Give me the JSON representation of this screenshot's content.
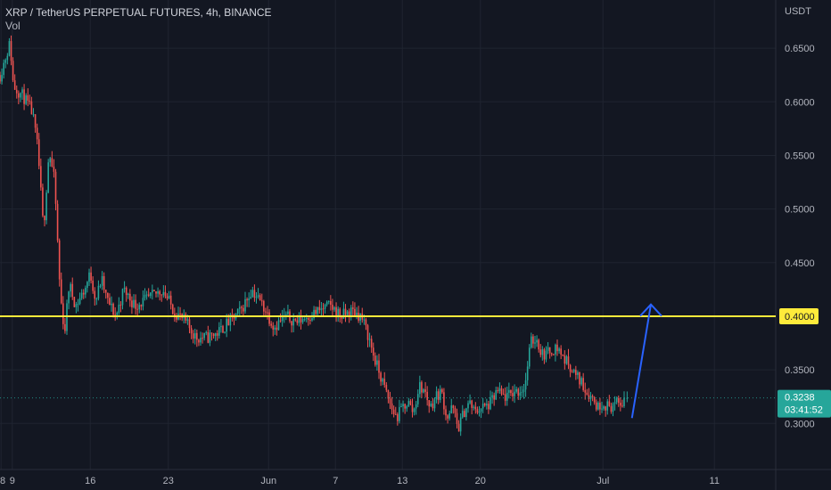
{
  "header": {
    "symbol_line": "XRP / TetherUS PERPETUAL FUTURES, 4h, BINANCE",
    "indicator": "Vol"
  },
  "axis": {
    "currency": "USDT"
  },
  "price_tag": {
    "price": "0.3238",
    "countdown": "03:41:52"
  },
  "level_tag": {
    "value": "0.4000"
  },
  "colors": {
    "background": "#131722",
    "grid": "#1f2430",
    "up_candle": "#26a69a",
    "down_candle": "#ef5350",
    "level_line": "#ffeb3b",
    "arrow": "#2962ff",
    "price_tag": "#26a69a",
    "axis_text": "#b2b5be"
  },
  "chart_data": {
    "type": "candlestick",
    "title": "XRP / TetherUS PERPETUAL FUTURES, 4h, BINANCE",
    "ylabel": "USDT",
    "ylim": [
      0.257,
      0.695
    ],
    "x_tick_labels": [
      "8",
      "9",
      "16",
      "23",
      "Jun",
      "7",
      "13",
      "20",
      "Jul",
      "11"
    ],
    "x_tick_days": [
      8,
      9,
      16,
      23,
      32,
      38,
      44,
      51,
      62,
      72
    ],
    "xlim_days": [
      7.9,
      77.5
    ],
    "y_ticks": [
      0.65,
      0.6,
      0.55,
      0.5,
      0.45,
      0.35,
      0.3
    ],
    "y_tick_labels": [
      "0.6500",
      "0.6000",
      "0.5500",
      "0.5000",
      "0.4500",
      "0.3500",
      "0.3000"
    ],
    "grid": true,
    "horizontal_level": 0.4,
    "last_price": 0.3238,
    "path_points": [
      [
        7.9,
        0.625
      ],
      [
        8.8,
        0.655
      ],
      [
        9.1,
        0.615
      ],
      [
        10.0,
        0.605
      ],
      [
        10.8,
        0.59
      ],
      [
        11.3,
        0.555
      ],
      [
        11.8,
        0.48
      ],
      [
        12.3,
        0.555
      ],
      [
        12.8,
        0.525
      ],
      [
        13.3,
        0.42
      ],
      [
        13.7,
        0.385
      ],
      [
        14.1,
        0.43
      ],
      [
        14.7,
        0.41
      ],
      [
        15.5,
        0.425
      ],
      [
        16.0,
        0.44
      ],
      [
        16.5,
        0.415
      ],
      [
        17.0,
        0.435
      ],
      [
        17.5,
        0.415
      ],
      [
        18.3,
        0.4
      ],
      [
        19.0,
        0.425
      ],
      [
        20.0,
        0.41
      ],
      [
        21.0,
        0.415
      ],
      [
        22.5,
        0.425
      ],
      [
        23.5,
        0.405
      ],
      [
        24.5,
        0.395
      ],
      [
        25.5,
        0.38
      ],
      [
        26.5,
        0.38
      ],
      [
        27.5,
        0.385
      ],
      [
        28.5,
        0.395
      ],
      [
        29.5,
        0.405
      ],
      [
        30.5,
        0.425
      ],
      [
        31.5,
        0.41
      ],
      [
        32.5,
        0.39
      ],
      [
        33.5,
        0.4
      ],
      [
        34.5,
        0.395
      ],
      [
        35.5,
        0.4
      ],
      [
        36.5,
        0.405
      ],
      [
        37.5,
        0.41
      ],
      [
        38.5,
        0.4
      ],
      [
        39.5,
        0.405
      ],
      [
        40.3,
        0.4
      ],
      [
        41.0,
        0.38
      ],
      [
        41.5,
        0.36
      ],
      [
        42.0,
        0.345
      ],
      [
        42.5,
        0.33
      ],
      [
        43.0,
        0.315
      ],
      [
        43.5,
        0.305
      ],
      [
        44.0,
        0.315
      ],
      [
        44.5,
        0.32
      ],
      [
        45.0,
        0.31
      ],
      [
        45.5,
        0.335
      ],
      [
        46.0,
        0.33
      ],
      [
        46.5,
        0.315
      ],
      [
        47.0,
        0.325
      ],
      [
        47.5,
        0.33
      ],
      [
        48.0,
        0.305
      ],
      [
        48.5,
        0.315
      ],
      [
        49.0,
        0.295
      ],
      [
        49.5,
        0.31
      ],
      [
        50.0,
        0.32
      ],
      [
        50.5,
        0.31
      ],
      [
        51.0,
        0.315
      ],
      [
        51.5,
        0.315
      ],
      [
        52.0,
        0.32
      ],
      [
        52.5,
        0.33
      ],
      [
        53.0,
        0.325
      ],
      [
        53.5,
        0.325
      ],
      [
        54.0,
        0.33
      ],
      [
        54.5,
        0.33
      ],
      [
        55.0,
        0.335
      ],
      [
        55.5,
        0.375
      ],
      [
        56.0,
        0.38
      ],
      [
        56.5,
        0.365
      ],
      [
        57.0,
        0.365
      ],
      [
        57.5,
        0.37
      ],
      [
        58.0,
        0.37
      ],
      [
        58.5,
        0.36
      ],
      [
        59.0,
        0.355
      ],
      [
        59.5,
        0.345
      ],
      [
        60.0,
        0.34
      ],
      [
        60.5,
        0.33
      ],
      [
        61.0,
        0.325
      ],
      [
        61.5,
        0.315
      ],
      [
        62.0,
        0.32
      ],
      [
        62.5,
        0.315
      ],
      [
        63.0,
        0.318
      ],
      [
        63.5,
        0.317
      ],
      [
        64.0,
        0.3238
      ]
    ],
    "arrow": {
      "from": [
        64.6,
        0.305
      ],
      "to": [
        66.3,
        0.411
      ]
    }
  }
}
